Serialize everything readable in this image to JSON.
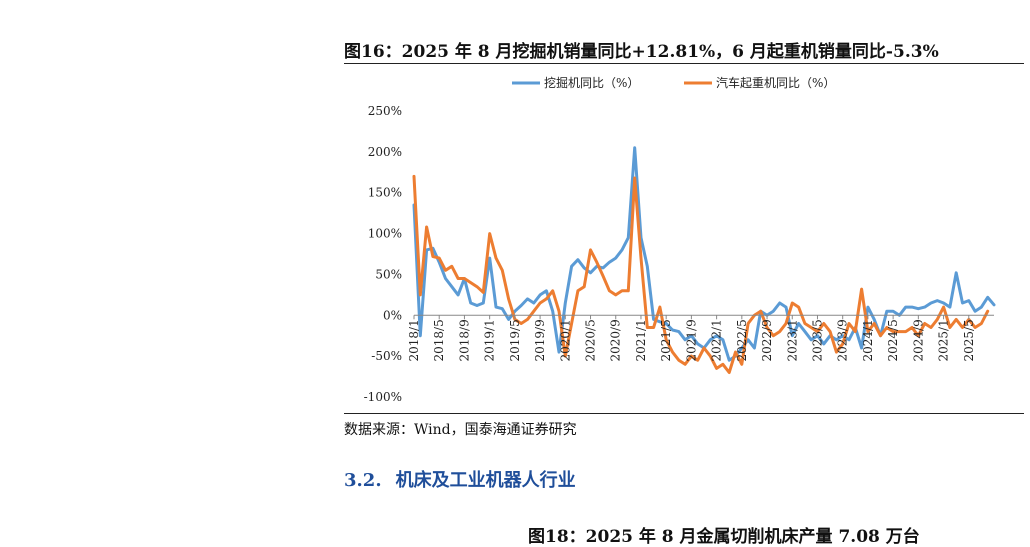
{
  "top_fragment_left": "",
  "top_fragment_right": "",
  "figure": {
    "title": "图16：2025 年 8 月挖掘机销量同比+12.81%，6 月起重机销量同比-5.3%",
    "source": "数据来源：Wind，国泰海通证券研究"
  },
  "section": {
    "number": "3.2.",
    "title": "机床及工业机器人行业"
  },
  "next_figure_title": "图18：2025 年 8 月金属切削机床产量 7.08 万台",
  "colors": {
    "excavator": "#5b9bd5",
    "crane": "#ed7d31",
    "section": "#1f4e9a"
  },
  "chart_data": {
    "type": "line",
    "title": "",
    "xlabel": "",
    "ylabel": "",
    "legend_position": "top",
    "ylim": [
      -100,
      250
    ],
    "yticks": [
      "250%",
      "200%",
      "150%",
      "100%",
      "50%",
      "0%",
      "-50%",
      "-100%"
    ],
    "ytick_values": [
      250,
      200,
      150,
      100,
      50,
      0,
      -50,
      -100
    ],
    "xticks": [
      "2018/1",
      "2018/5",
      "2018/9",
      "2019/1",
      "2019/5",
      "2019/9",
      "2020/1",
      "2020/5",
      "2020/9",
      "2021/1",
      "2021/5",
      "2021/9",
      "2022/1",
      "2022/5",
      "2022/9",
      "2023/1",
      "2023/5",
      "2023/9",
      "2024/1",
      "2024/5",
      "2024/9",
      "2025/1",
      "2025/5"
    ],
    "series": [
      {
        "name": "挖掘机同比（%）",
        "color": "#5b9bd5",
        "values": [
          135,
          -25,
          80,
          82,
          65,
          45,
          35,
          25,
          45,
          15,
          12,
          15,
          70,
          10,
          8,
          -5,
          5,
          12,
          20,
          15,
          25,
          30,
          5,
          -45,
          15,
          60,
          68,
          58,
          52,
          60,
          58,
          65,
          70,
          80,
          95,
          205,
          95,
          60,
          -5,
          -8,
          -10,
          -18,
          -20,
          -30,
          -25,
          -35,
          -40,
          -30,
          -25,
          -30,
          -55,
          -50,
          -40,
          -30,
          -40,
          5,
          0,
          5,
          15,
          10,
          -25,
          -10,
          -20,
          -30,
          -25,
          -35,
          -25,
          -30,
          -25,
          -30,
          -15,
          -40,
          10,
          -5,
          -25,
          5,
          5,
          0,
          10,
          10,
          8,
          10,
          15,
          18,
          15,
          10,
          52,
          15,
          18,
          5,
          10,
          22,
          12.81
        ]
      },
      {
        "name": "汽车起重机同比（%）",
        "color": "#ed7d31",
        "values": [
          170,
          25,
          108,
          72,
          70,
          55,
          60,
          45,
          45,
          40,
          35,
          28,
          100,
          70,
          55,
          20,
          -5,
          -10,
          -5,
          5,
          15,
          20,
          30,
          5,
          -50,
          -10,
          30,
          35,
          80,
          65,
          48,
          30,
          25,
          30,
          30,
          168,
          70,
          -15,
          -15,
          10,
          -30,
          -45,
          -55,
          -60,
          -50,
          -55,
          -40,
          -50,
          -65,
          -60,
          -70,
          -45,
          -60,
          -10,
          0,
          5,
          -15,
          -25,
          -20,
          -10,
          15,
          10,
          -10,
          -15,
          -20,
          -10,
          -20,
          -45,
          -35,
          -10,
          -20,
          32,
          -20,
          -10,
          -25,
          -15,
          -20,
          -20,
          -20,
          -15,
          -25,
          -10,
          -15,
          -5,
          10,
          -15,
          -5,
          -15,
          -5,
          -15,
          -10,
          5
        ]
      }
    ]
  }
}
